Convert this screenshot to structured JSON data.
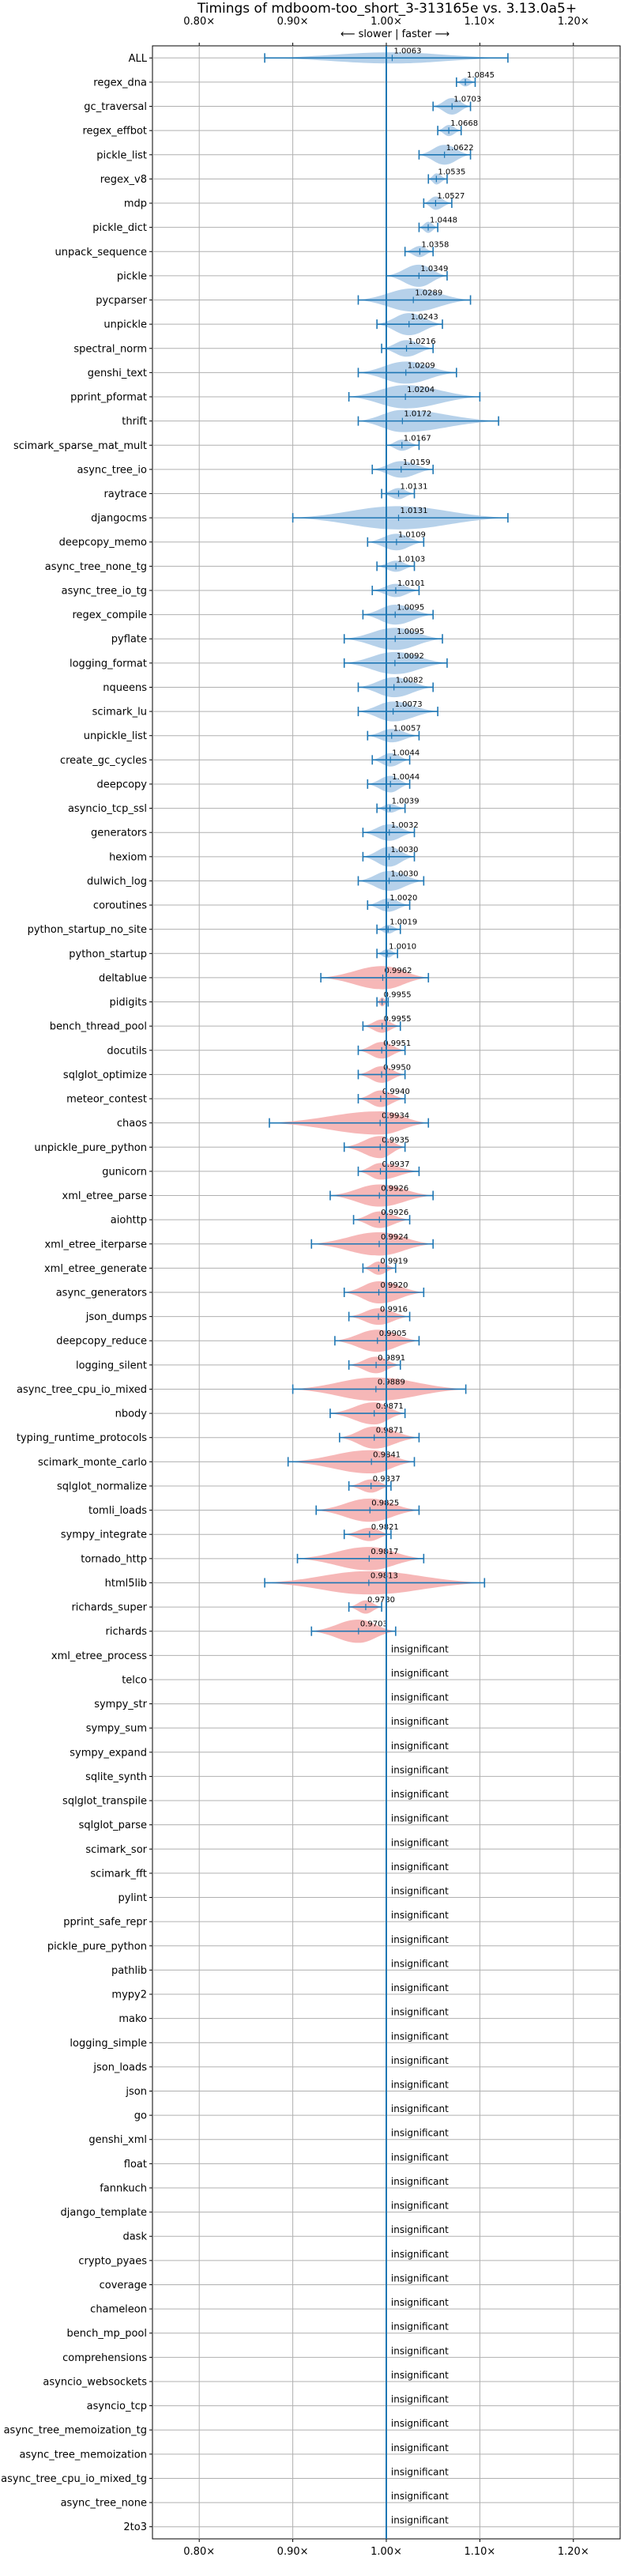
{
  "title": "Timings of mdboom-too_short_3-313165e vs. 3.13.0a5+",
  "direction_note": "⟵ slower | faster ⟶",
  "chart_data": {
    "type": "violin",
    "orientation": "horizontal",
    "title": "Timings of mdboom-too_short_3-313165e vs. 3.13.0a5+",
    "xlim": [
      0.75,
      1.25
    ],
    "xticks": [
      0.8,
      0.9,
      1.0,
      1.1,
      1.2
    ],
    "xtick_labels": [
      "0.80×",
      "0.90×",
      "1.00×",
      "1.10×",
      "1.20×"
    ],
    "tick_positions": [
      "top",
      "bottom"
    ],
    "grid": true,
    "reference_line": 1.0,
    "colors": {
      "faster": "#a9c9e6",
      "slower": "#f4aaaa",
      "errorbar": "#1f77b4",
      "grid": "#b0b0b0",
      "refline": "#1f77b4"
    },
    "significant": [
      {
        "name": "ALL",
        "mean": 1.0063,
        "label": "1.0063",
        "lo": 0.87,
        "hi": 1.13,
        "width": 0.01
      },
      {
        "name": "regex_dna",
        "mean": 1.0845,
        "label": "1.0845",
        "lo": 1.075,
        "hi": 1.095,
        "width": 0.008
      },
      {
        "name": "gc_traversal",
        "mean": 1.0703,
        "label": "1.0703",
        "lo": 1.05,
        "hi": 1.09,
        "width": 0.015
      },
      {
        "name": "regex_effbot",
        "mean": 1.0668,
        "label": "1.0668",
        "lo": 1.055,
        "hi": 1.08,
        "width": 0.01
      },
      {
        "name": "pickle_list",
        "mean": 1.0622,
        "label": "1.0622",
        "lo": 1.035,
        "hi": 1.09,
        "width": 0.018
      },
      {
        "name": "regex_v8",
        "mean": 1.0535,
        "label": "1.0535",
        "lo": 1.045,
        "hi": 1.065,
        "width": 0.01
      },
      {
        "name": "mdp",
        "mean": 1.0527,
        "label": "1.0527",
        "lo": 1.04,
        "hi": 1.07,
        "width": 0.012
      },
      {
        "name": "pickle_dict",
        "mean": 1.0448,
        "label": "1.0448",
        "lo": 1.035,
        "hi": 1.055,
        "width": 0.01
      },
      {
        "name": "unpack_sequence",
        "mean": 1.0358,
        "label": "1.0358",
        "lo": 1.02,
        "hi": 1.05,
        "width": 0.01
      },
      {
        "name": "pickle",
        "mean": 1.0349,
        "label": "1.0349",
        "lo": 1.0,
        "hi": 1.065,
        "width": 0.02
      },
      {
        "name": "pycparser",
        "mean": 1.0289,
        "label": "1.0289",
        "lo": 0.97,
        "hi": 1.09,
        "width": 0.025
      },
      {
        "name": "unpickle",
        "mean": 1.0243,
        "label": "1.0243",
        "lo": 0.99,
        "hi": 1.06,
        "width": 0.02
      },
      {
        "name": "spectral_norm",
        "mean": 1.0216,
        "label": "1.0216",
        "lo": 0.995,
        "hi": 1.05,
        "width": 0.015
      },
      {
        "name": "genshi_text",
        "mean": 1.0209,
        "label": "1.0209",
        "lo": 0.97,
        "hi": 1.075,
        "width": 0.02
      },
      {
        "name": "pprint_pformat",
        "mean": 1.0204,
        "label": "1.0204",
        "lo": 0.96,
        "hi": 1.1,
        "width": 0.025
      },
      {
        "name": "thrift",
        "mean": 1.0172,
        "label": "1.0172",
        "lo": 0.97,
        "hi": 1.12,
        "width": 0.02
      },
      {
        "name": "scimark_sparse_mat_mult",
        "mean": 1.0167,
        "label": "1.0167",
        "lo": 1.0,
        "hi": 1.035,
        "width": 0.01
      },
      {
        "name": "async_tree_io",
        "mean": 1.0159,
        "label": "1.0159",
        "lo": 0.985,
        "hi": 1.05,
        "width": 0.015
      },
      {
        "name": "raytrace",
        "mean": 1.0131,
        "label": "1.0131",
        "lo": 0.995,
        "hi": 1.03,
        "width": 0.01
      },
      {
        "name": "djangocms",
        "mean": 1.0131,
        "label": "1.0131",
        "lo": 0.9,
        "hi": 1.13,
        "width": 0.04
      },
      {
        "name": "deepcopy_memo",
        "mean": 1.0109,
        "label": "1.0109",
        "lo": 0.98,
        "hi": 1.04,
        "width": 0.015
      },
      {
        "name": "async_tree_none_tg",
        "mean": 1.0103,
        "label": "1.0103",
        "lo": 0.99,
        "hi": 1.03,
        "width": 0.01
      },
      {
        "name": "async_tree_io_tg",
        "mean": 1.0101,
        "label": "1.0101",
        "lo": 0.985,
        "hi": 1.035,
        "width": 0.012
      },
      {
        "name": "regex_compile",
        "mean": 1.0095,
        "label": "1.0095",
        "lo": 0.975,
        "hi": 1.05,
        "width": 0.018
      },
      {
        "name": "pyflate",
        "mean": 1.0095,
        "label": "1.0095",
        "lo": 0.955,
        "hi": 1.06,
        "width": 0.02
      },
      {
        "name": "logging_format",
        "mean": 1.0092,
        "label": "1.0092",
        "lo": 0.955,
        "hi": 1.065,
        "width": 0.02
      },
      {
        "name": "nqueens",
        "mean": 1.0082,
        "label": "1.0082",
        "lo": 0.97,
        "hi": 1.05,
        "width": 0.018
      },
      {
        "name": "scimark_lu",
        "mean": 1.0073,
        "label": "1.0073",
        "lo": 0.97,
        "hi": 1.055,
        "width": 0.018
      },
      {
        "name": "unpickle_list",
        "mean": 1.0057,
        "label": "1.0057",
        "lo": 0.98,
        "hi": 1.035,
        "width": 0.012
      },
      {
        "name": "create_gc_cycles",
        "mean": 1.0044,
        "label": "1.0044",
        "lo": 0.985,
        "hi": 1.025,
        "width": 0.012
      },
      {
        "name": "deepcopy",
        "mean": 1.0044,
        "label": "1.0044",
        "lo": 0.98,
        "hi": 1.025,
        "width": 0.015
      },
      {
        "name": "asyncio_tcp_ssl",
        "mean": 1.0039,
        "label": "1.0039",
        "lo": 0.99,
        "hi": 1.02,
        "width": 0.008
      },
      {
        "name": "generators",
        "mean": 1.0032,
        "label": "1.0032",
        "lo": 0.975,
        "hi": 1.03,
        "width": 0.015
      },
      {
        "name": "hexiom",
        "mean": 1.003,
        "label": "1.0030",
        "lo": 0.975,
        "hi": 1.03,
        "width": 0.018
      },
      {
        "name": "dulwich_log",
        "mean": 1.003,
        "label": "1.0030",
        "lo": 0.97,
        "hi": 1.04,
        "width": 0.018
      },
      {
        "name": "coroutines",
        "mean": 1.002,
        "label": "1.0020",
        "lo": 0.98,
        "hi": 1.025,
        "width": 0.012
      },
      {
        "name": "python_startup_no_site",
        "mean": 1.0019,
        "label": "1.0019",
        "lo": 0.99,
        "hi": 1.015,
        "width": 0.008
      },
      {
        "name": "python_startup",
        "mean": 1.001,
        "label": "1.0010",
        "lo": 0.99,
        "hi": 1.012,
        "width": 0.008
      },
      {
        "name": "deltablue",
        "mean": 0.9962,
        "label": "0.9962",
        "lo": 0.93,
        "hi": 1.045,
        "width": 0.035
      },
      {
        "name": "pidigits",
        "mean": 0.9955,
        "label": "0.9955",
        "lo": 0.99,
        "hi": 1.002,
        "width": 0.008
      },
      {
        "name": "bench_thread_pool",
        "mean": 0.9955,
        "label": "0.9955",
        "lo": 0.975,
        "hi": 1.015,
        "width": 0.012
      },
      {
        "name": "docutils",
        "mean": 0.9951,
        "label": "0.9951",
        "lo": 0.97,
        "hi": 1.02,
        "width": 0.015
      },
      {
        "name": "sqlglot_optimize",
        "mean": 0.995,
        "label": "0.9950",
        "lo": 0.97,
        "hi": 1.02,
        "width": 0.015
      },
      {
        "name": "meteor_contest",
        "mean": 0.994,
        "label": "0.9940",
        "lo": 0.97,
        "hi": 1.02,
        "width": 0.015
      },
      {
        "name": "chaos",
        "mean": 0.9934,
        "label": "0.9934",
        "lo": 0.875,
        "hi": 1.045,
        "width": 0.035
      },
      {
        "name": "unpickle_pure_python",
        "mean": 0.9935,
        "label": "0.9935",
        "lo": 0.955,
        "hi": 1.02,
        "width": 0.02
      },
      {
        "name": "gunicorn",
        "mean": 0.9937,
        "label": "0.9937",
        "lo": 0.97,
        "hi": 1.035,
        "width": 0.015
      },
      {
        "name": "xml_etree_parse",
        "mean": 0.9926,
        "label": "0.9926",
        "lo": 0.94,
        "hi": 1.05,
        "width": 0.02
      },
      {
        "name": "aiohttp",
        "mean": 0.9926,
        "label": "0.9926",
        "lo": 0.965,
        "hi": 1.025,
        "width": 0.015
      },
      {
        "name": "xml_etree_iterparse",
        "mean": 0.9924,
        "label": "0.9924",
        "lo": 0.92,
        "hi": 1.05,
        "width": 0.025
      },
      {
        "name": "xml_etree_generate",
        "mean": 0.9919,
        "label": "0.9919",
        "lo": 0.975,
        "hi": 1.01,
        "width": 0.012
      },
      {
        "name": "async_generators",
        "mean": 0.992,
        "label": "0.9920",
        "lo": 0.955,
        "hi": 1.04,
        "width": 0.02
      },
      {
        "name": "json_dumps",
        "mean": 0.9916,
        "label": "0.9916",
        "lo": 0.96,
        "hi": 1.025,
        "width": 0.015
      },
      {
        "name": "deepcopy_reduce",
        "mean": 0.9905,
        "label": "0.9905",
        "lo": 0.945,
        "hi": 1.035,
        "width": 0.02
      },
      {
        "name": "logging_silent",
        "mean": 0.9891,
        "label": "0.9891",
        "lo": 0.96,
        "hi": 1.015,
        "width": 0.015
      },
      {
        "name": "async_tree_cpu_io_mixed",
        "mean": 0.9889,
        "label": "0.9889",
        "lo": 0.9,
        "hi": 1.085,
        "width": 0.035
      },
      {
        "name": "nbody",
        "mean": 0.9871,
        "label": "0.9871",
        "lo": 0.94,
        "hi": 1.02,
        "width": 0.02
      },
      {
        "name": "typing_runtime_protocols",
        "mean": 0.9871,
        "label": "0.9871",
        "lo": 0.95,
        "hi": 1.035,
        "width": 0.02
      },
      {
        "name": "scimark_monte_carlo",
        "mean": 0.9841,
        "label": "0.9841",
        "lo": 0.895,
        "hi": 1.03,
        "width": 0.025
      },
      {
        "name": "sqlglot_normalize",
        "mean": 0.9837,
        "label": "0.9837",
        "lo": 0.96,
        "hi": 1.005,
        "width": 0.012
      },
      {
        "name": "tomli_loads",
        "mean": 0.9825,
        "label": "0.9825",
        "lo": 0.925,
        "hi": 1.035,
        "width": 0.035
      },
      {
        "name": "sympy_integrate",
        "mean": 0.9821,
        "label": "0.9821",
        "lo": 0.955,
        "hi": 1.005,
        "width": 0.012
      },
      {
        "name": "tornado_http",
        "mean": 0.9817,
        "label": "0.9817",
        "lo": 0.905,
        "hi": 1.04,
        "width": 0.03
      },
      {
        "name": "html5lib",
        "mean": 0.9813,
        "label": "0.9813",
        "lo": 0.87,
        "hi": 1.105,
        "width": 0.03
      },
      {
        "name": "richards_super",
        "mean": 0.978,
        "label": "0.9780",
        "lo": 0.96,
        "hi": 0.995,
        "width": 0.012
      },
      {
        "name": "richards",
        "mean": 0.9703,
        "label": "0.9703",
        "lo": 0.92,
        "hi": 1.01,
        "width": 0.025
      }
    ],
    "insignificant_label": "insignificant",
    "insignificant": [
      "xml_etree_process",
      "telco",
      "sympy_str",
      "sympy_sum",
      "sympy_expand",
      "sqlite_synth",
      "sqlglot_transpile",
      "sqlglot_parse",
      "scimark_sor",
      "scimark_fft",
      "pylint",
      "pprint_safe_repr",
      "pickle_pure_python",
      "pathlib",
      "mypy2",
      "mako",
      "logging_simple",
      "json_loads",
      "json",
      "go",
      "genshi_xml",
      "float",
      "fannkuch",
      "django_template",
      "dask",
      "crypto_pyaes",
      "coverage",
      "chameleon",
      "bench_mp_pool",
      "comprehensions",
      "asyncio_websockets",
      "asyncio_tcp",
      "async_tree_memoization_tg",
      "async_tree_memoization",
      "async_tree_cpu_io_mixed_tg",
      "async_tree_none",
      "2to3"
    ]
  }
}
